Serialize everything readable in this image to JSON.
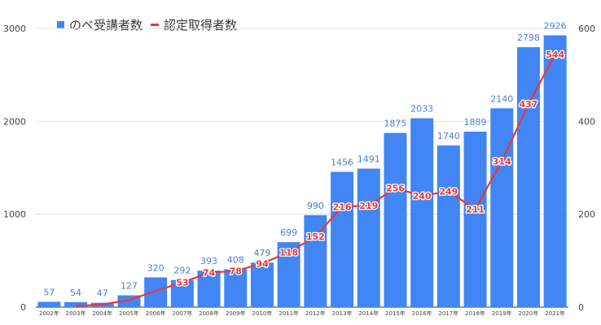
{
  "chart_data": {
    "type": "bar",
    "categories": [
      "2002年",
      "2003年",
      "2004年",
      "2005年",
      "2006年",
      "2007年",
      "2008年",
      "2009年",
      "2010年",
      "2011年",
      "2012年",
      "2013年",
      "2014年",
      "2015年",
      "2016年",
      "2017年",
      "2018年",
      "2019年",
      "2020年",
      "2021年"
    ],
    "series": [
      {
        "name": "のべ受講者数",
        "type": "bar",
        "axis": "left",
        "color": "#4285f4",
        "values": [
          57,
          54,
          47,
          127,
          320,
          292,
          393,
          408,
          479,
          699,
          990,
          1456,
          1491,
          1875,
          2033,
          1740,
          1889,
          2140,
          2798,
          2926
        ]
      },
      {
        "name": "認定取得者数",
        "type": "line",
        "axis": "right",
        "color": "#e53935",
        "values": [
          null,
          null,
          null,
          null,
          null,
          53,
          74,
          78,
          94,
          118,
          152,
          216,
          219,
          256,
          240,
          249,
          211,
          314,
          437,
          544
        ],
        "implied_values_unlabeled": [
          null,
          2,
          6,
          15,
          35,
          null,
          null,
          null,
          null,
          null,
          null,
          null,
          null,
          null,
          null,
          null,
          null,
          null,
          null,
          null
        ]
      }
    ],
    "y_left": {
      "ticks": [
        "0",
        "1000",
        "2000",
        "3000"
      ],
      "ylim": [
        0,
        3000
      ]
    },
    "y_right": {
      "ticks": [
        "0",
        "200",
        "400",
        "600"
      ],
      "ylim": [
        0,
        600
      ]
    },
    "grid": true,
    "legend_position": "top-left"
  }
}
